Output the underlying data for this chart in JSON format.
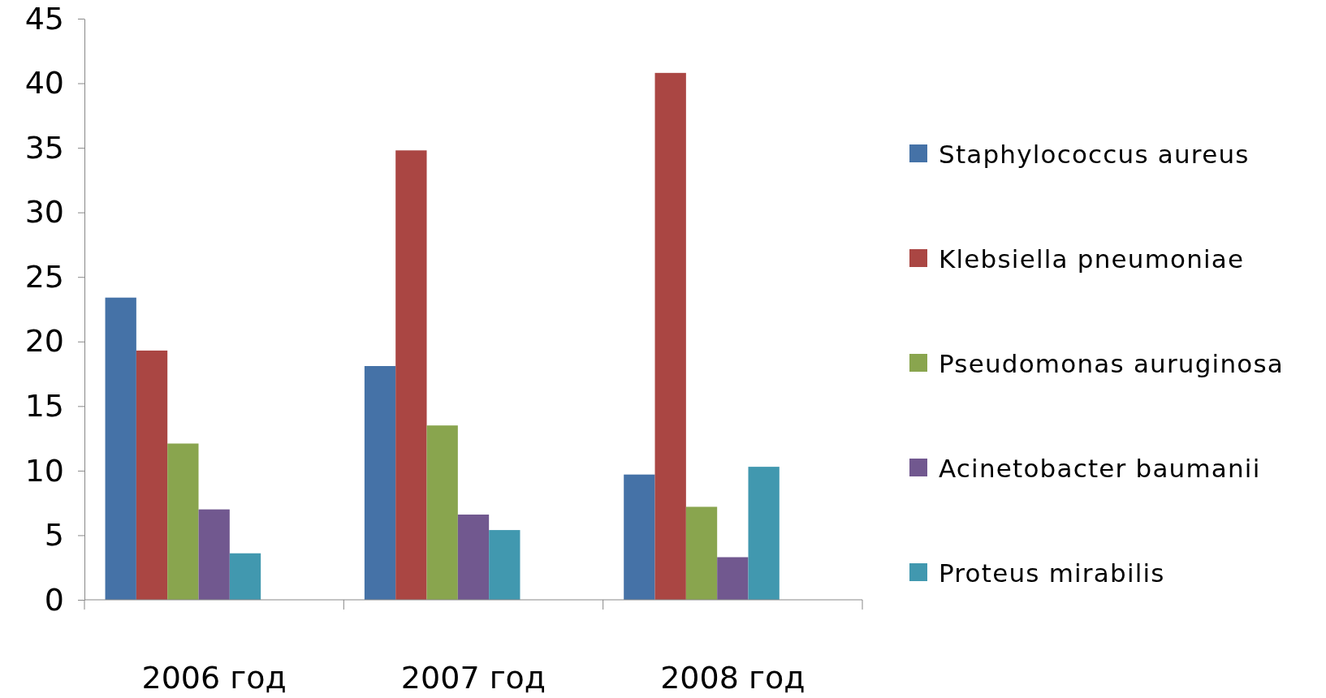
{
  "chart_data": {
    "type": "bar",
    "categories": [
      "2006 год",
      "2007 год",
      "2008 год"
    ],
    "series": [
      {
        "name": "Staphylococcus aureus",
        "color": "#4572a7",
        "values": [
          23.4,
          18.1,
          9.7
        ]
      },
      {
        "name": "Klebsiella pneumoniae",
        "color": "#aa4643",
        "values": [
          19.3,
          34.8,
          40.8
        ]
      },
      {
        "name": "Pseudomonas auruginosa",
        "color": "#89a54e",
        "values": [
          12.1,
          13.5,
          7.2
        ]
      },
      {
        "name": "Acinetobacter baumanii",
        "color": "#71588f",
        "values": [
          7.0,
          6.6,
          3.3
        ]
      },
      {
        "name": "Proteus mirabilis",
        "color": "#4198af",
        "values": [
          3.6,
          5.4,
          10.3
        ]
      }
    ],
    "ylim": [
      0,
      45
    ],
    "yticks": [
      0,
      5,
      10,
      15,
      20,
      25,
      30,
      35,
      40,
      45
    ],
    "grid": false,
    "legend": "right"
  }
}
